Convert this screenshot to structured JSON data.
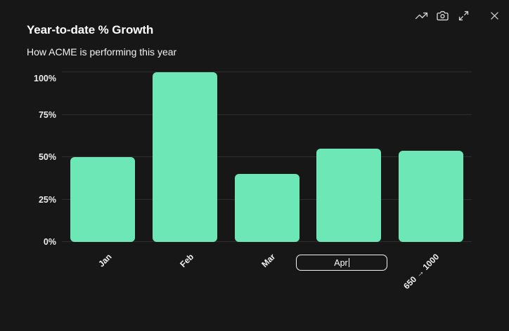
{
  "header": {
    "title": "Year-to-date % Growth",
    "subtitle": "How ACME is performing this year"
  },
  "toolbar": {
    "icons": [
      "trending-up",
      "camera",
      "expand",
      "close"
    ]
  },
  "chart_data": {
    "type": "bar",
    "title": "Year-to-date % Growth",
    "subtitle": "How ACME is performing this year",
    "categories": [
      "Jan",
      "Feb",
      "Mar",
      "Apr",
      "650 → 1000"
    ],
    "values": [
      50,
      100,
      40,
      55,
      53.8
    ],
    "xlabel": "",
    "ylabel": "",
    "y_ticks": [
      0,
      25,
      50,
      75,
      100
    ],
    "y_tick_labels": [
      "0%",
      "25%",
      "50%",
      "75%",
      "100%"
    ],
    "ylim": [
      0,
      103
    ],
    "grid": true,
    "legend": false,
    "x_label_rotation": -45,
    "bar_color": "#6ee7b7",
    "background": "#171717",
    "edited_label": {
      "index": 3,
      "value": "Apr"
    }
  },
  "colors": {
    "background": "#171717",
    "bar": "#6ee7b7",
    "gridline": "#2d2d2d",
    "icon": "#d6d6d6",
    "input_border": "#f2f2f2"
  }
}
